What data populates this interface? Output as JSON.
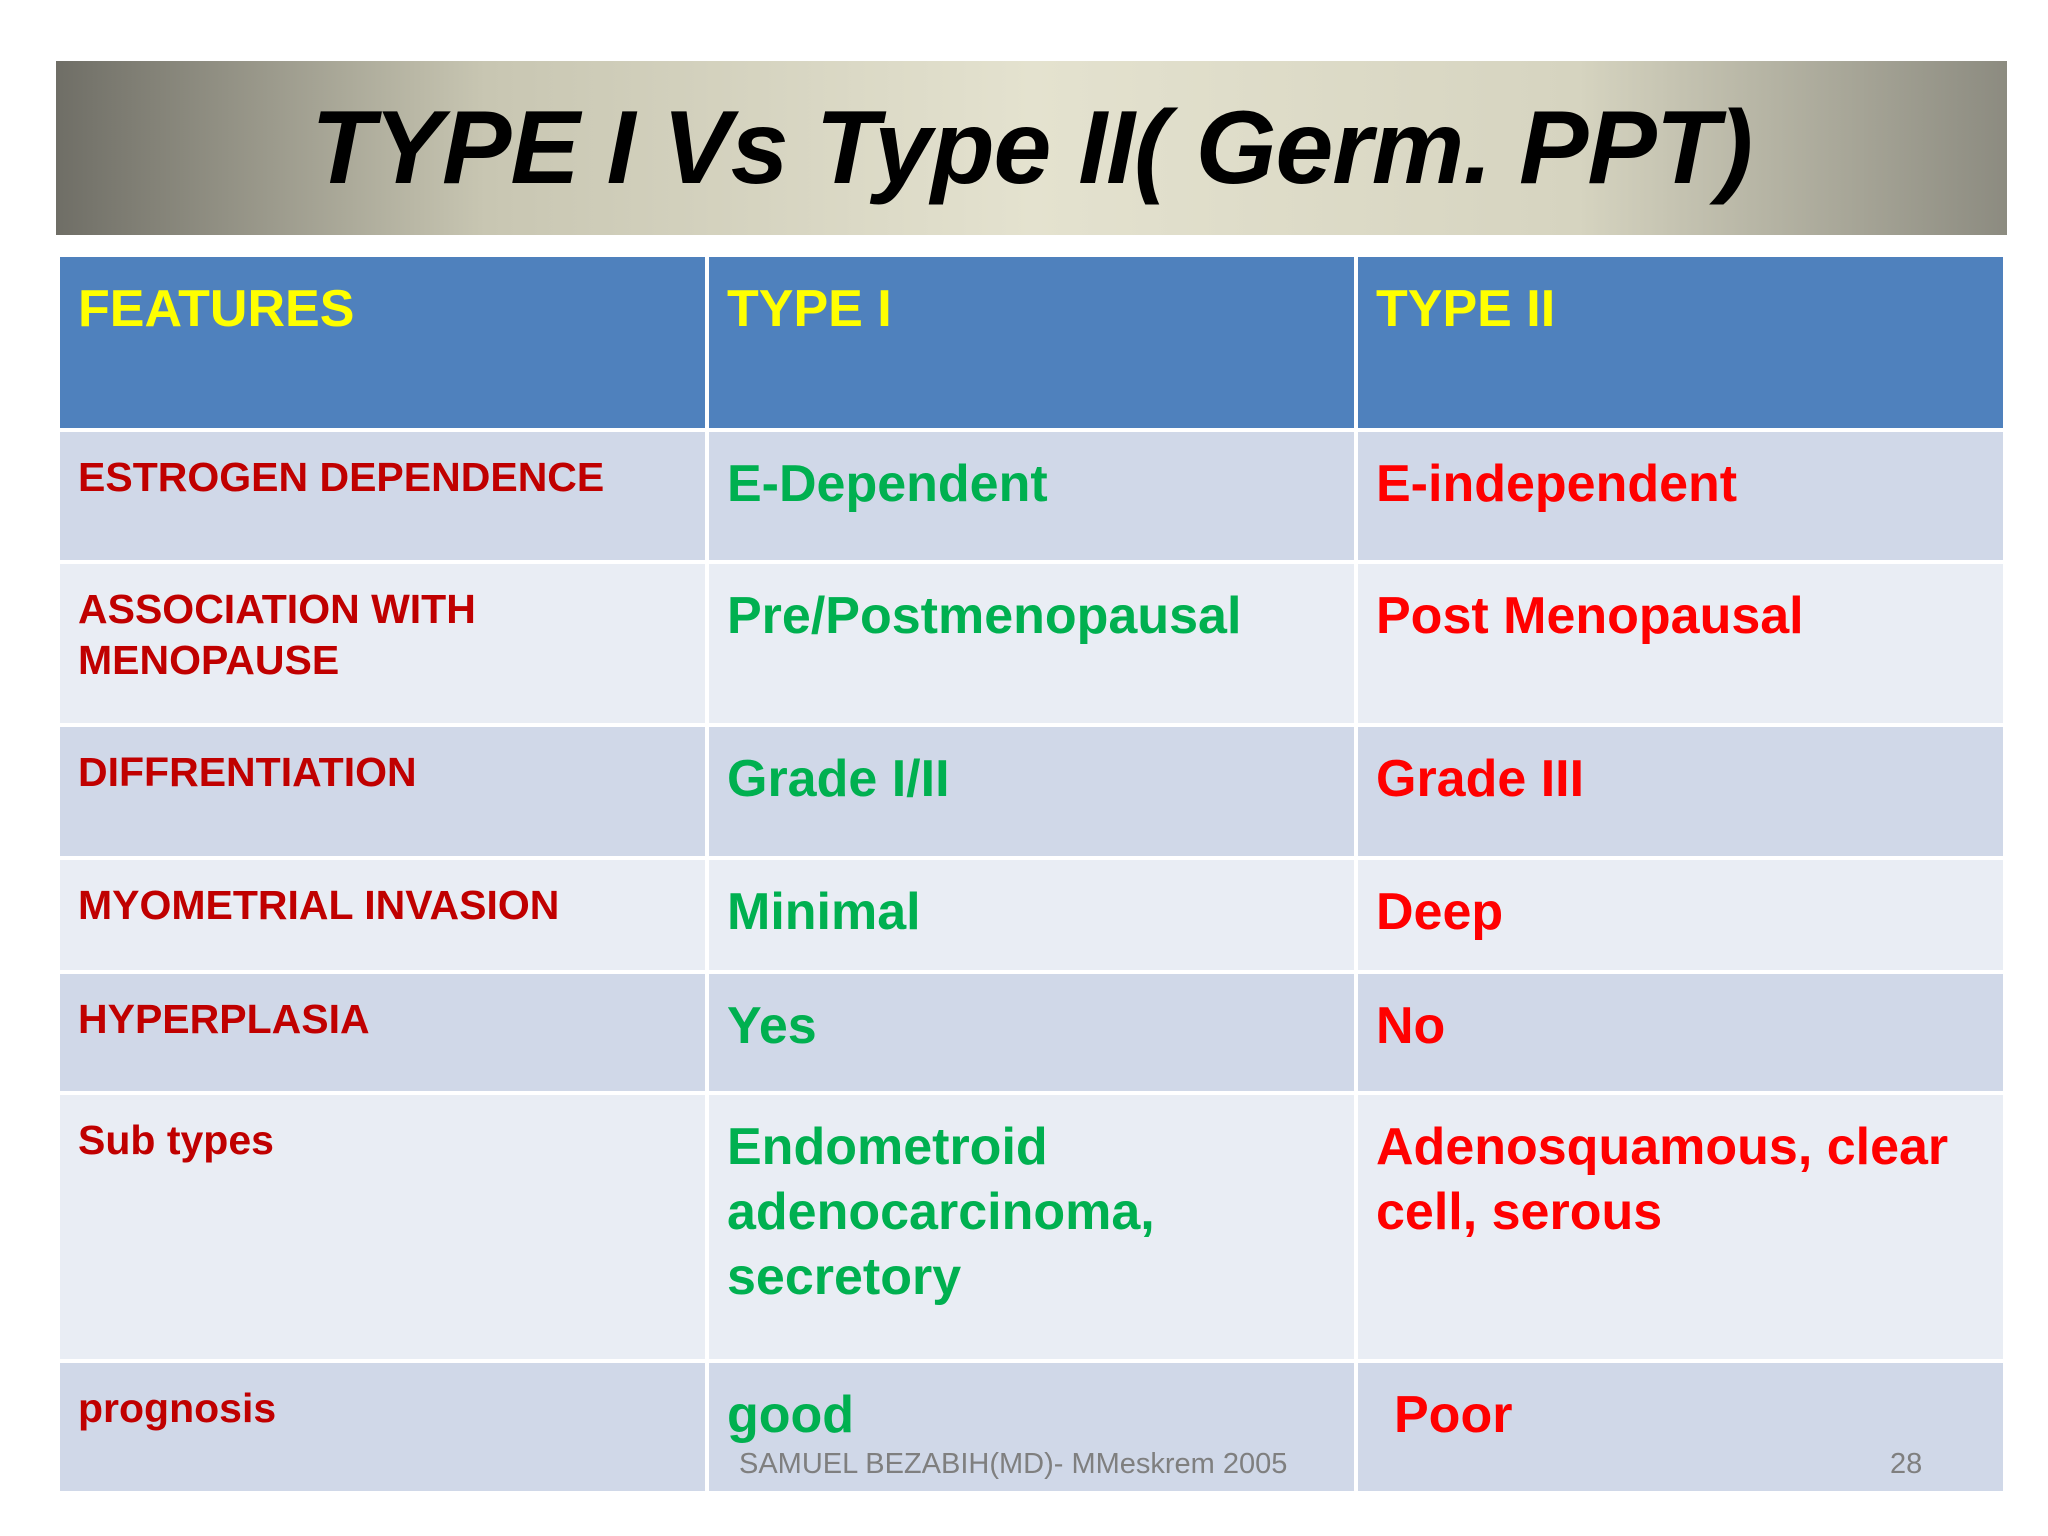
{
  "title": "TYPE I Vs Type II( Germ. PPT)",
  "table": {
    "header": [
      "FEATURES",
      "TYPE I",
      "TYPE II"
    ],
    "rows": [
      [
        "ESTROGEN DEPENDENCE",
        "E-Dependent",
        "E-independent"
      ],
      [
        "ASSOCIATION WITH MENOPAUSE",
        "Pre/Postmenopausal",
        "Post Menopausal"
      ],
      [
        "DIFFRENTIATION",
        "Grade I/II",
        "Grade III"
      ],
      [
        "MYOMETRIAL INVASION",
        "Minimal",
        "Deep"
      ],
      [
        "HYPERPLASIA",
        "Yes",
        "No"
      ],
      [
        "Sub types",
        "Endometroid adenocarcinoma, secretory",
        "Adenosquamous, clear cell,  serous"
      ],
      [
        "prognosis",
        "good",
        "Poor"
      ]
    ]
  },
  "footer": {
    "author": "SAMUEL BEZABIH(MD)- MMeskrem 2005",
    "page": "28"
  }
}
